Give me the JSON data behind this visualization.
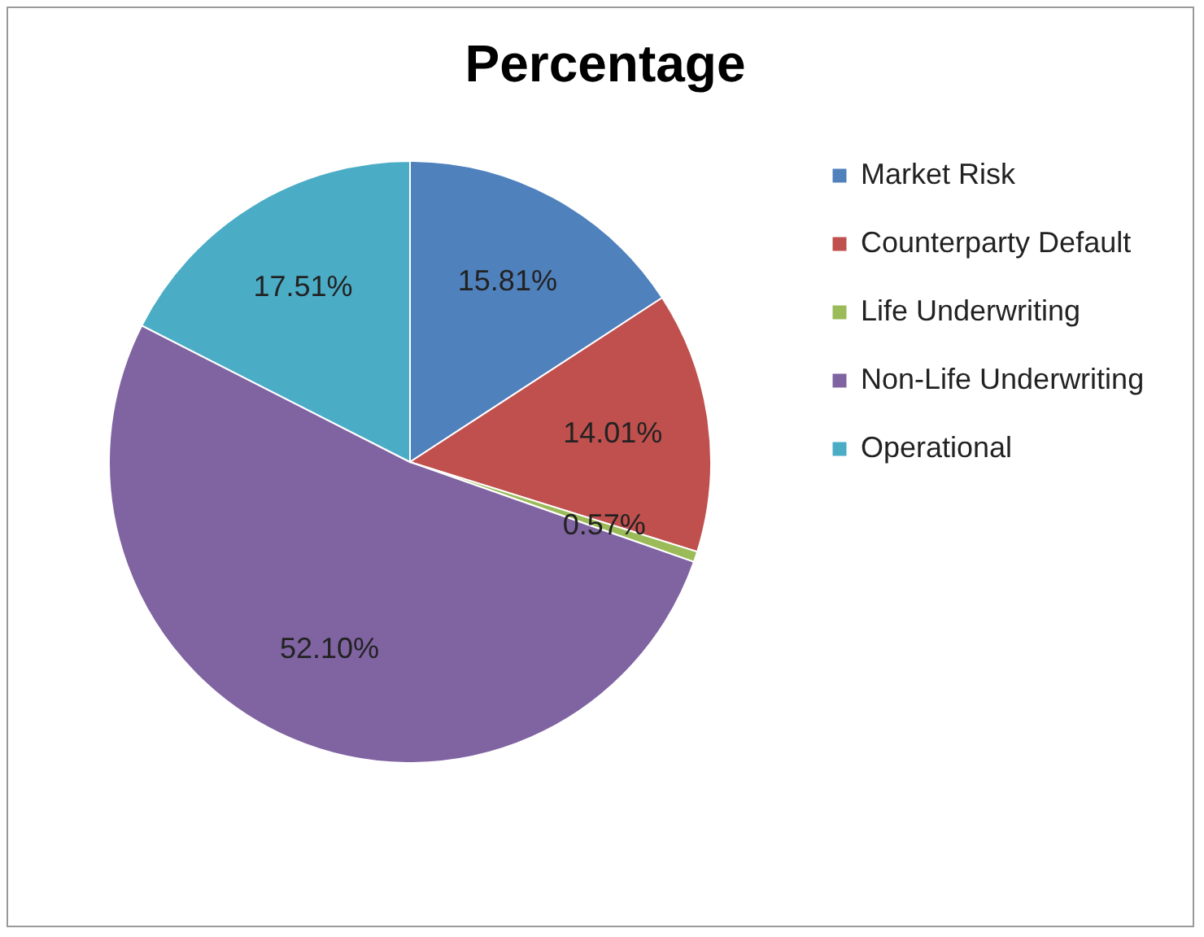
{
  "chart_data": {
    "type": "pie",
    "title": "Percentage",
    "categories": [
      "Market Risk",
      "Counterparty Default",
      "Life Underwriting",
      "Non-Life Underwriting",
      "Operational"
    ],
    "values": [
      15.81,
      14.01,
      0.57,
      52.1,
      17.51
    ],
    "colors": [
      "#4f81bd",
      "#c0504d",
      "#9bbb59",
      "#8064a2",
      "#4bacc6"
    ],
    "value_labels": [
      "15.81%",
      "14.01%",
      "0.57%",
      "52.10%",
      "17.51%"
    ],
    "legend": "right"
  }
}
